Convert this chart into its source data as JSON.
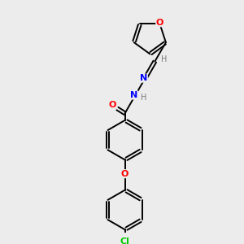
{
  "background_color": "#ececec",
  "bond_color": "#000000",
  "atom_colors": {
    "O": "#ff0000",
    "N": "#0000ff",
    "Cl": "#00cc00",
    "H": "#7a7a7a",
    "C": "#000000"
  },
  "figsize": [
    3.0,
    3.0
  ],
  "dpi": 100,
  "xlim": [
    0,
    10
  ],
  "ylim": [
    0,
    10
  ]
}
